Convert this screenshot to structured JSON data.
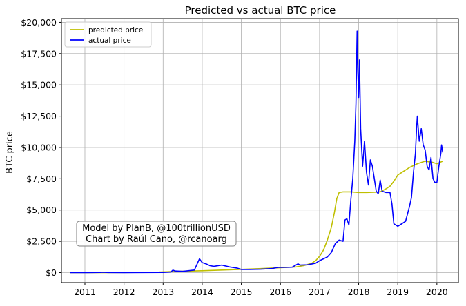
{
  "chart_data": {
    "type": "line",
    "title": "Predicted vs actual BTC price",
    "xlabel": "",
    "ylabel": "BTC price",
    "xlim": [
      2010.4,
      2020.55
    ],
    "ylim": [
      -800,
      20300
    ],
    "x_ticks": [
      2011,
      2012,
      2013,
      2014,
      2015,
      2016,
      2017,
      2018,
      2019,
      2020
    ],
    "x_tick_labels": [
      "2011",
      "2012",
      "2013",
      "2014",
      "2015",
      "2016",
      "2017",
      "2018",
      "2019",
      "2020"
    ],
    "y_ticks": [
      0,
      2500,
      5000,
      7500,
      10000,
      12500,
      15000,
      17500,
      20000
    ],
    "y_tick_labels": [
      "$0",
      "$2,500",
      "$5,000",
      "$7,500",
      "$10,000",
      "$12,500",
      "$15,000",
      "$17,500",
      "$20,000"
    ],
    "grid": true,
    "legend": "upper-left",
    "annotation": {
      "lines": [
        "Model by PlanB, @100trillionUSD",
        "Chart by Raúl Cano, @rcanoarg"
      ],
      "placement": "lower-left"
    },
    "series": [
      {
        "name": "predicted price",
        "color": "#bfbf00",
        "points": [
          [
            2010.62,
            0
          ],
          [
            2011.0,
            2
          ],
          [
            2011.5,
            5
          ],
          [
            2012.0,
            10
          ],
          [
            2012.5,
            20
          ],
          [
            2012.9,
            45
          ],
          [
            2013.2,
            80
          ],
          [
            2013.6,
            120
          ],
          [
            2014.0,
            150
          ],
          [
            2014.5,
            200
          ],
          [
            2015.0,
            260
          ],
          [
            2015.5,
            320
          ],
          [
            2016.0,
            390
          ],
          [
            2016.4,
            450
          ],
          [
            2016.6,
            560
          ],
          [
            2016.8,
            750
          ],
          [
            2016.9,
            950
          ],
          [
            2017.0,
            1300
          ],
          [
            2017.1,
            1800
          ],
          [
            2017.2,
            2600
          ],
          [
            2017.3,
            3600
          ],
          [
            2017.38,
            4800
          ],
          [
            2017.44,
            5900
          ],
          [
            2017.5,
            6400
          ],
          [
            2017.6,
            6450
          ],
          [
            2017.8,
            6450
          ],
          [
            2018.0,
            6400
          ],
          [
            2018.2,
            6400
          ],
          [
            2018.4,
            6420
          ],
          [
            2018.55,
            6450
          ],
          [
            2018.7,
            6700
          ],
          [
            2018.8,
            6900
          ],
          [
            2018.9,
            7300
          ],
          [
            2019.0,
            7800
          ],
          [
            2019.1,
            8000
          ],
          [
            2019.3,
            8400
          ],
          [
            2019.5,
            8700
          ],
          [
            2019.7,
            8900
          ],
          [
            2019.9,
            8800
          ],
          [
            2020.0,
            8700
          ],
          [
            2020.15,
            8900
          ]
        ]
      },
      {
        "name": "actual price",
        "color": "#0000ff",
        "points": [
          [
            2010.62,
            0
          ],
          [
            2011.0,
            1
          ],
          [
            2011.4,
            15
          ],
          [
            2011.45,
            25
          ],
          [
            2011.6,
            10
          ],
          [
            2012.0,
            5
          ],
          [
            2012.5,
            8
          ],
          [
            2013.0,
            15
          ],
          [
            2013.2,
            50
          ],
          [
            2013.25,
            200
          ],
          [
            2013.3,
            130
          ],
          [
            2013.5,
            100
          ],
          [
            2013.8,
            200
          ],
          [
            2013.9,
            900
          ],
          [
            2013.93,
            1100
          ],
          [
            2014.0,
            800
          ],
          [
            2014.1,
            700
          ],
          [
            2014.2,
            550
          ],
          [
            2014.3,
            500
          ],
          [
            2014.5,
            600
          ],
          [
            2014.7,
            450
          ],
          [
            2014.9,
            350
          ],
          [
            2015.0,
            250
          ],
          [
            2015.2,
            250
          ],
          [
            2015.5,
            270
          ],
          [
            2015.8,
            330
          ],
          [
            2015.95,
            420
          ],
          [
            2016.0,
            420
          ],
          [
            2016.3,
            430
          ],
          [
            2016.45,
            700
          ],
          [
            2016.5,
            600
          ],
          [
            2016.7,
            620
          ],
          [
            2016.9,
            750
          ],
          [
            2017.0,
            950
          ],
          [
            2017.1,
            1100
          ],
          [
            2017.2,
            1250
          ],
          [
            2017.3,
            1600
          ],
          [
            2017.4,
            2300
          ],
          [
            2017.5,
            2600
          ],
          [
            2017.6,
            2500
          ],
          [
            2017.65,
            4200
          ],
          [
            2017.7,
            4300
          ],
          [
            2017.75,
            3800
          ],
          [
            2017.8,
            5800
          ],
          [
            2017.85,
            7500
          ],
          [
            2017.9,
            10500
          ],
          [
            2017.93,
            13500
          ],
          [
            2017.96,
            19300
          ],
          [
            2017.98,
            16000
          ],
          [
            2018.0,
            14000
          ],
          [
            2018.02,
            17000
          ],
          [
            2018.05,
            11500
          ],
          [
            2018.1,
            8500
          ],
          [
            2018.15,
            10500
          ],
          [
            2018.2,
            8000
          ],
          [
            2018.25,
            7000
          ],
          [
            2018.3,
            9000
          ],
          [
            2018.35,
            8500
          ],
          [
            2018.4,
            7500
          ],
          [
            2018.45,
            6500
          ],
          [
            2018.5,
            6300
          ],
          [
            2018.55,
            7400
          ],
          [
            2018.6,
            6500
          ],
          [
            2018.7,
            6400
          ],
          [
            2018.8,
            6400
          ],
          [
            2018.85,
            5500
          ],
          [
            2018.9,
            3900
          ],
          [
            2018.95,
            3800
          ],
          [
            2019.0,
            3700
          ],
          [
            2019.1,
            3900
          ],
          [
            2019.2,
            4100
          ],
          [
            2019.3,
            5300
          ],
          [
            2019.35,
            6000
          ],
          [
            2019.4,
            8000
          ],
          [
            2019.45,
            9500
          ],
          [
            2019.48,
            11500
          ],
          [
            2019.5,
            12500
          ],
          [
            2019.55,
            10500
          ],
          [
            2019.6,
            11500
          ],
          [
            2019.65,
            10200
          ],
          [
            2019.7,
            9800
          ],
          [
            2019.75,
            8500
          ],
          [
            2019.8,
            8200
          ],
          [
            2019.85,
            9200
          ],
          [
            2019.9,
            7500
          ],
          [
            2019.95,
            7200
          ],
          [
            2020.0,
            7200
          ],
          [
            2020.05,
            8500
          ],
          [
            2020.1,
            9500
          ],
          [
            2020.12,
            10200
          ],
          [
            2020.15,
            9600
          ]
        ]
      }
    ]
  }
}
